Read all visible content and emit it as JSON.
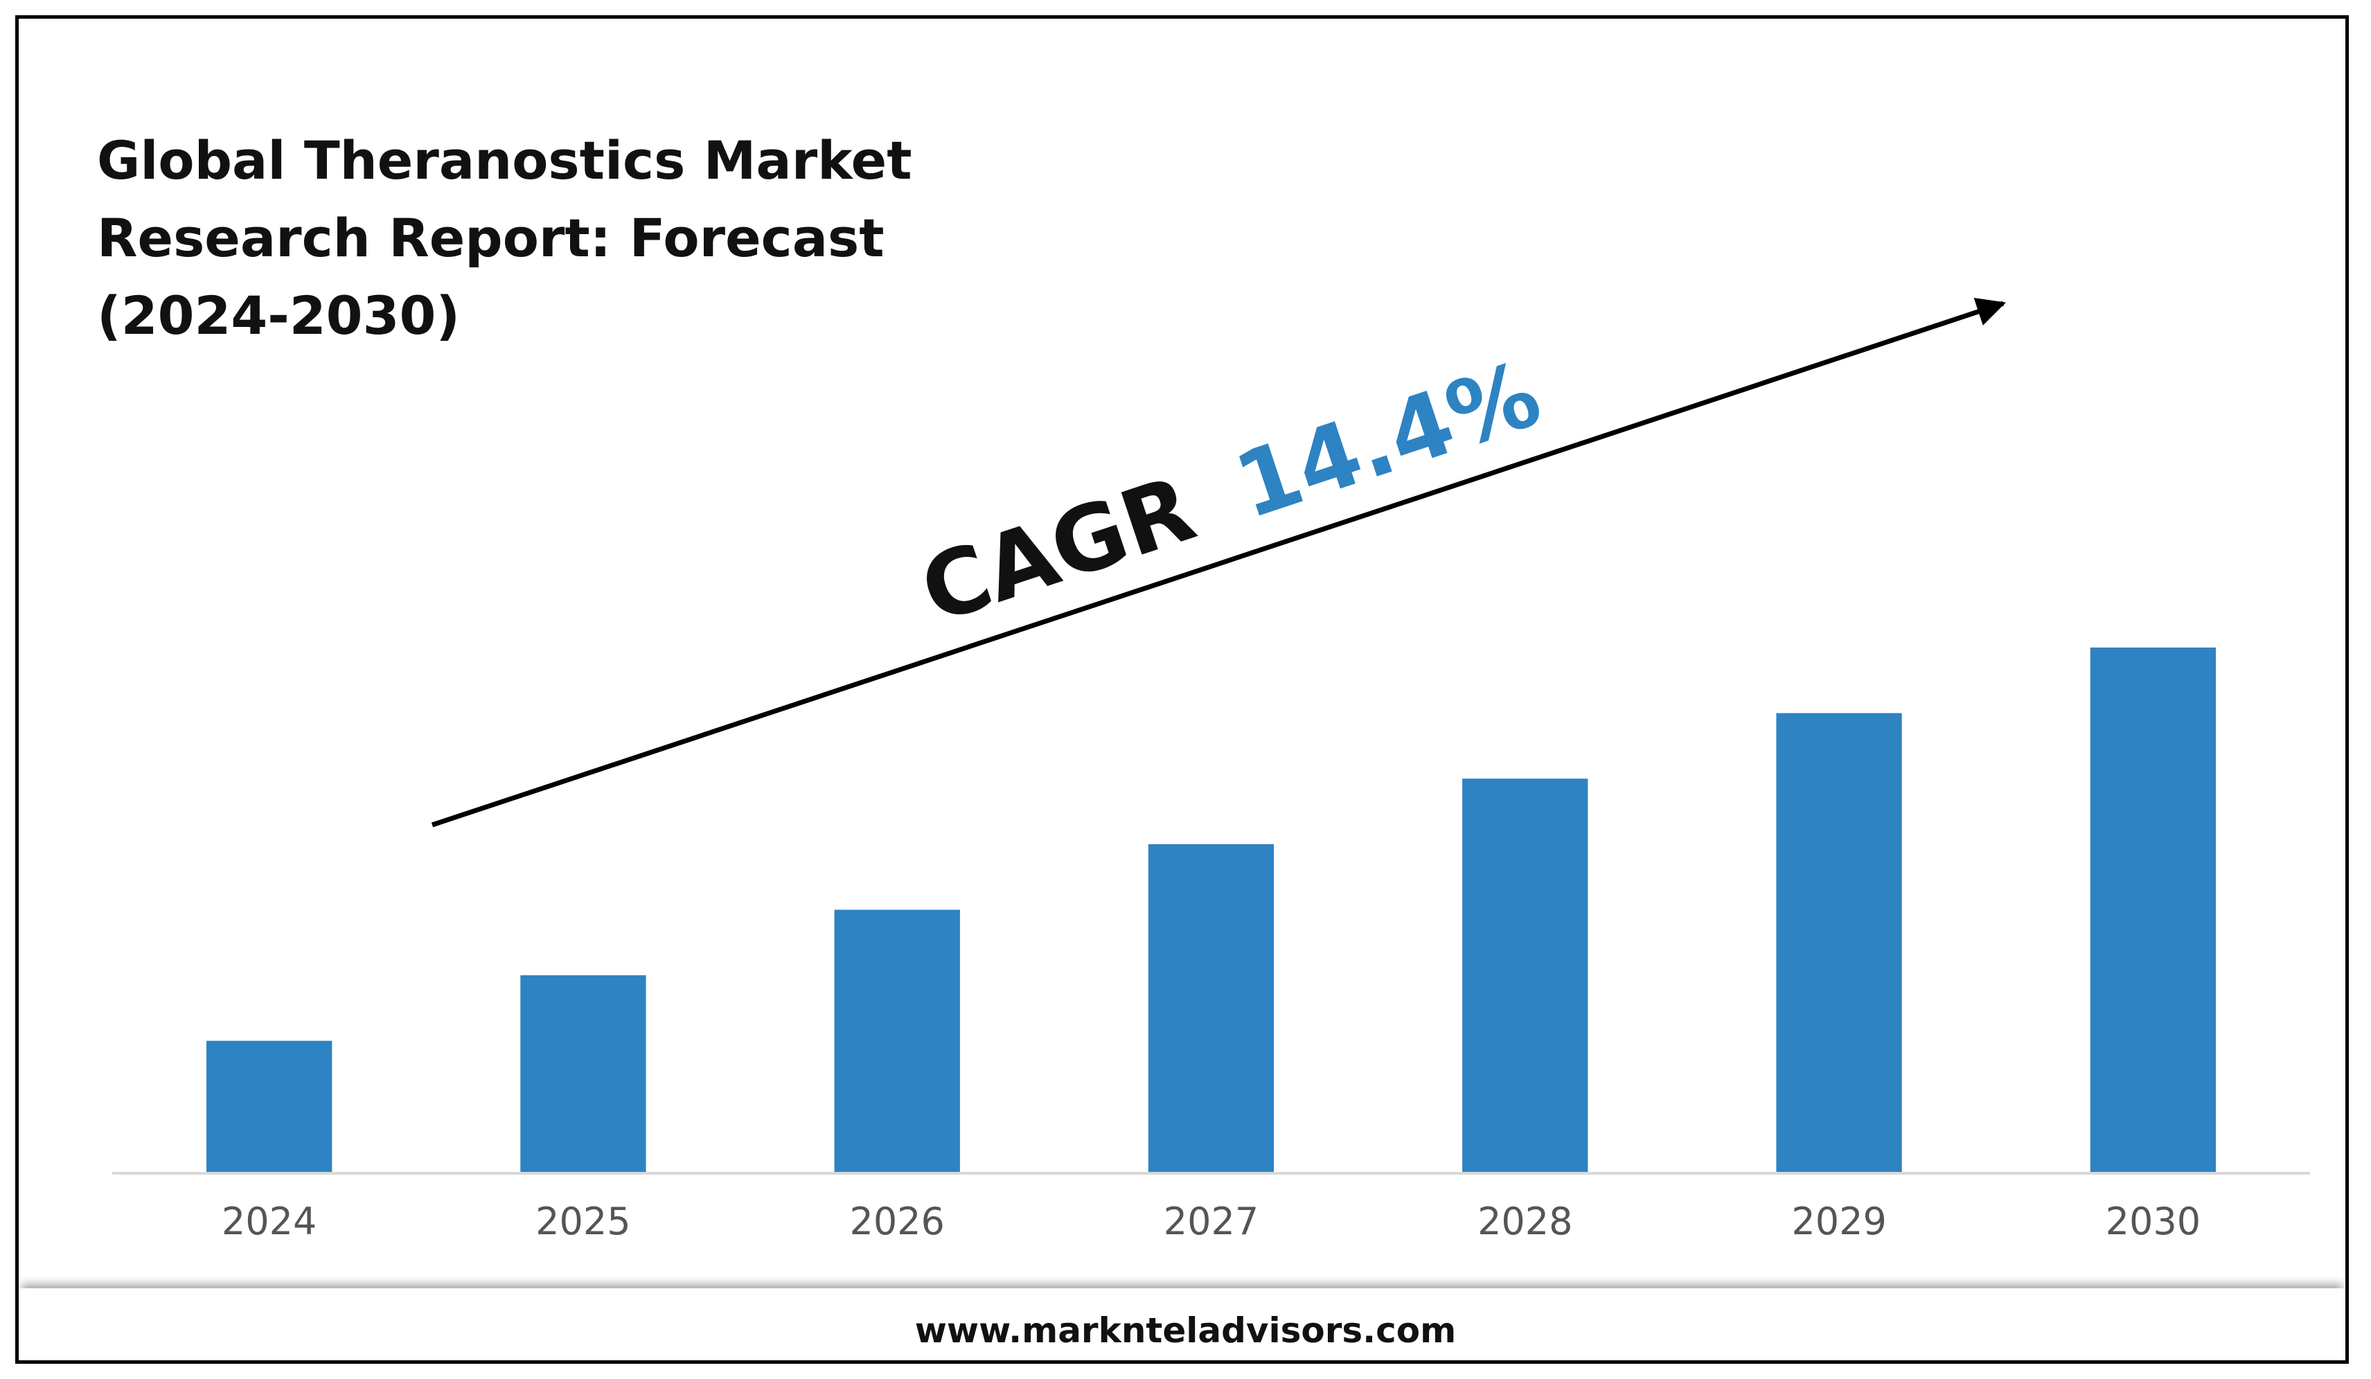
{
  "page": {
    "website": "www.marknteladvisors.com"
  },
  "chart_data": {
    "type": "bar",
    "title_lines": [
      "Global Theranostics Market",
      "Research Report: Forecast",
      "(2024-2030)"
    ],
    "categories": [
      "2024",
      "2025",
      "2026",
      "2027",
      "2028",
      "2029",
      "2030"
    ],
    "values": [
      2,
      3,
      4,
      5,
      6,
      7,
      8
    ],
    "ylim": [
      0,
      8.2
    ],
    "grid": false,
    "legend": "none",
    "bar_color": "#2E83C3",
    "annotation": {
      "prefix": "CAGR",
      "value": "14.4%",
      "prefix_color": "#111111",
      "value_color": "#2E83C3"
    }
  }
}
